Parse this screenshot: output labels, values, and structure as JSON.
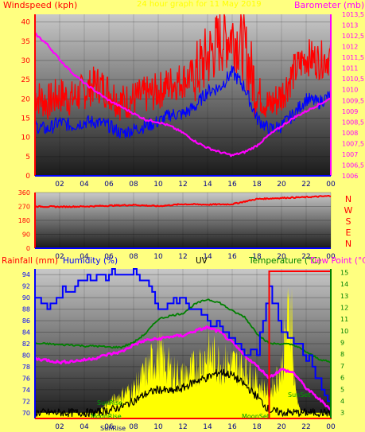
{
  "header": {
    "windspeed_label": "Windspeed (kph)",
    "date_title": "24 hour graph for 11 May 2019",
    "barometer_label": "Barometer (mb)"
  },
  "bottom_header": {
    "rainfall_label": "Rainfall (mm)",
    "humidity_label": "Humidity (%)",
    "uv_label": "UV",
    "temperature_label": "Temperature (°C)",
    "dewpoint_label": "Dew Point (°C"
  },
  "annotations": {
    "sunrise_upper": "SunRise",
    "sunrise_lower": "SunRise",
    "sunrise_bottom": "SunRise",
    "moonrise": "MoonRise",
    "moonset": "MoonSet",
    "sunset": "SunSet"
  },
  "colors": {
    "page_bg": "#ffff80",
    "wind_gust": "#ff0000",
    "wind_avg": "#0000ff",
    "barometer": "#ff00ff",
    "direction": "#ff0000",
    "humidity": "#0000ff",
    "temperature": "#ff00ff",
    "dewpoint": "#008000",
    "uv": "#000000",
    "solar": "#ffff00",
    "rain": "#ff0000",
    "axis_left": "#ff0000",
    "axis_right": "#ff00ff"
  },
  "chart_data": [
    {
      "type": "line",
      "name": "wind_barometer",
      "x_ticks": [
        "02",
        "04",
        "06",
        "08",
        "10",
        "12",
        "14",
        "16",
        "18",
        "20",
        "22",
        "00"
      ],
      "ylim_left": [
        0,
        42
      ],
      "yticks_left": [
        "0",
        "5",
        "10",
        "15",
        "20",
        "25",
        "30",
        "35",
        "40"
      ],
      "ylim_right": [
        1006,
        1013.5
      ],
      "yticks_right": [
        "1006",
        "1006,5",
        "1007",
        "1007,5",
        "1008",
        "1008,5",
        "1009",
        "1009,5",
        "1010",
        "1010,5",
        "1011",
        "1011,5",
        "1012",
        "1012,5",
        "1013",
        "1013,5"
      ],
      "series": [
        {
          "key": "gust",
          "axis": "left",
          "hours": [
            0,
            1,
            2,
            3,
            4,
            5,
            6,
            7,
            8,
            9,
            10,
            11,
            12,
            13,
            14,
            15,
            16,
            17,
            18,
            19,
            20,
            21,
            22,
            23,
            24
          ],
          "values": [
            21,
            19,
            21,
            20,
            22,
            24,
            22,
            19,
            20,
            21,
            22,
            24,
            25,
            26,
            31,
            35,
            37,
            33,
            22,
            18,
            21,
            27,
            31,
            30,
            31
          ]
        },
        {
          "key": "avg",
          "axis": "left",
          "hours": [
            0,
            1,
            2,
            3,
            4,
            5,
            6,
            7,
            8,
            9,
            10,
            11,
            12,
            13,
            14,
            15,
            16,
            17,
            18,
            19,
            20,
            21,
            22,
            23,
            24
          ],
          "values": [
            13,
            12,
            14,
            13,
            14,
            14,
            13,
            11,
            12,
            13,
            14,
            16,
            16,
            18,
            22,
            23,
            27,
            23,
            15,
            12,
            13,
            16,
            20,
            19,
            21
          ]
        },
        {
          "key": "baro",
          "axis": "right",
          "hours": [
            0,
            1,
            2,
            3,
            4,
            5,
            6,
            7,
            8,
            9,
            10,
            11,
            12,
            13,
            14,
            15,
            16,
            17,
            18,
            19,
            20,
            21,
            22,
            23,
            24
          ],
          "values": [
            1012.6,
            1012.1,
            1011.4,
            1010.8,
            1010.3,
            1009.9,
            1009.5,
            1009.2,
            1008.9,
            1008.6,
            1008.5,
            1008.3,
            1008.0,
            1007.6,
            1007.3,
            1007.1,
            1006.95,
            1007.1,
            1007.4,
            1007.9,
            1008.3,
            1008.7,
            1009.0,
            1009.3,
            1009.6
          ]
        }
      ]
    },
    {
      "type": "line",
      "name": "wind_direction",
      "x_ticks": [
        "02",
        "04",
        "06",
        "08",
        "10",
        "12",
        "14",
        "16",
        "18",
        "20",
        "22",
        "00"
      ],
      "ylim": [
        0,
        360
      ],
      "yticks": [
        "0",
        "90",
        "180",
        "270",
        "360"
      ],
      "right_labels": [
        "N",
        "W",
        "S",
        "E",
        "N"
      ],
      "series": [
        {
          "key": "direction",
          "hours": [
            0,
            2,
            4,
            6,
            8,
            10,
            12,
            14,
            16,
            18,
            20,
            22,
            24
          ],
          "values": [
            270,
            268,
            270,
            275,
            280,
            272,
            285,
            282,
            285,
            318,
            325,
            330,
            338
          ]
        }
      ]
    },
    {
      "type": "line",
      "name": "humidity_temperature_uv_solar",
      "x_ticks": [
        "02",
        "04",
        "06",
        "08",
        "10",
        "12",
        "14",
        "16",
        "18",
        "20",
        "22",
        "00"
      ],
      "ylim_left": [
        69,
        95
      ],
      "yticks_left": [
        "70",
        "72",
        "74",
        "76",
        "78",
        "80",
        "82",
        "84",
        "86",
        "88",
        "90",
        "92",
        "94"
      ],
      "ylim_right": [
        2.5,
        15.3
      ],
      "yticks_right": [
        "3",
        "4",
        "5",
        "6",
        "7",
        "8",
        "9",
        "10",
        "11",
        "12",
        "13",
        "14",
        "15"
      ],
      "series": [
        {
          "key": "humidity",
          "axis": "left",
          "hours": [
            0,
            1,
            2,
            3,
            4,
            5,
            6,
            7,
            8,
            9,
            10,
            11,
            12,
            13,
            14,
            15,
            16,
            17,
            18,
            19,
            20,
            21,
            22,
            23,
            24
          ],
          "values": [
            90,
            88,
            91,
            92,
            93,
            94,
            94,
            94,
            94,
            93,
            88,
            89,
            90,
            88,
            86,
            85,
            83,
            81,
            80,
            92,
            84,
            83,
            80,
            76,
            71
          ]
        },
        {
          "key": "dewpoint",
          "axis": "right",
          "hours": [
            0,
            1,
            2,
            3,
            4,
            5,
            6,
            7,
            8,
            9,
            10,
            11,
            12,
            13,
            14,
            15,
            16,
            17,
            18,
            19,
            20,
            21,
            22,
            23,
            24
          ],
          "values": [
            8.9,
            8.9,
            8.8,
            8.8,
            8.7,
            8.7,
            8.6,
            8.6,
            9.0,
            9.8,
            11.0,
            11.3,
            11.5,
            12.3,
            12.7,
            12.4,
            11.7,
            11.2,
            9.8,
            8.9,
            8.9,
            8.8,
            8.2,
            7.6,
            7.3
          ]
        },
        {
          "key": "temperature",
          "axis": "right",
          "hours": [
            0,
            1,
            2,
            3,
            4,
            5,
            6,
            7,
            8,
            9,
            10,
            11,
            12,
            13,
            14,
            15,
            16,
            17,
            18,
            19,
            20,
            21,
            22,
            23,
            24
          ],
          "values": [
            7.6,
            7.5,
            7.3,
            7.4,
            7.5,
            7.7,
            8.0,
            8.2,
            8.8,
            9.2,
            9.3,
            9.5,
            9.6,
            10.0,
            10.3,
            9.9,
            9.0,
            7.9,
            7.0,
            6.0,
            6.7,
            6.4,
            5.1,
            4.2,
            3.3
          ]
        },
        {
          "key": "uv",
          "axis": "right",
          "hours": [
            0,
            5,
            6,
            7,
            8,
            9,
            10,
            11,
            12,
            13,
            14,
            15,
            16,
            17,
            18,
            19,
            20,
            24
          ],
          "values": [
            3,
            3,
            3.2,
            3.5,
            4.0,
            4.6,
            5.0,
            4.8,
            5.1,
            5.7,
            6.0,
            6.5,
            6.2,
            5.4,
            4.4,
            3.2,
            3,
            3
          ]
        },
        {
          "key": "solar",
          "axis": "right",
          "hours": [
            0,
            5,
            6,
            7,
            8,
            9,
            10,
            11,
            12,
            13,
            14,
            15,
            16,
            17,
            18,
            19,
            20,
            20.8,
            21,
            21.5,
            22,
            24
          ],
          "values": [
            3,
            3,
            4.0,
            4.8,
            5.4,
            7.1,
            9.0,
            7.3,
            6.6,
            7.5,
            8.9,
            8.0,
            7.8,
            7.6,
            6.1,
            5.0,
            7.4,
            14.6,
            6.3,
            3.3,
            3,
            3
          ]
        },
        {
          "key": "rain",
          "axis": "left",
          "hours": [
            0,
            24
          ],
          "values": [
            69,
            69
          ]
        }
      ],
      "rain_box_hours": [
        19,
        24
      ]
    }
  ]
}
